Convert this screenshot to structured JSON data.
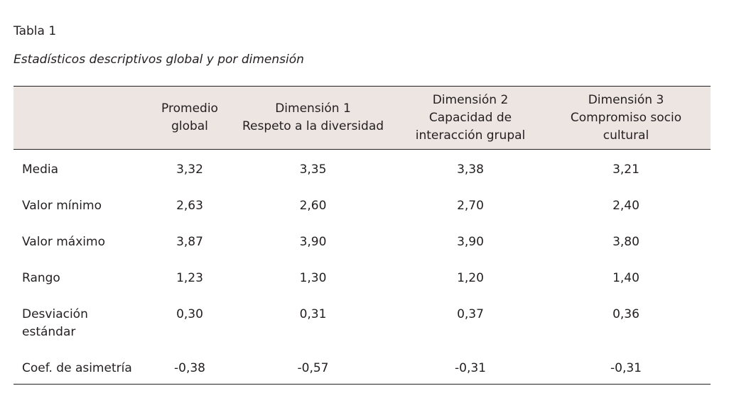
{
  "table_label": "Tabla 1",
  "caption": "Estadísticos descriptivos global  y por dimensión",
  "headers": [
    {
      "lines": []
    },
    {
      "lines": [
        "Promedio",
        "global"
      ]
    },
    {
      "lines": [
        "Dimensión 1",
        "Respeto a la diversidad"
      ]
    },
    {
      "lines": [
        "Dimensión 2",
        "Capacidad de",
        "interacción grupal"
      ]
    },
    {
      "lines": [
        "Dimensión 3",
        "Compromiso socio",
        "cultural"
      ]
    }
  ],
  "rows": [
    {
      "label": [
        "Media"
      ],
      "values": [
        "3,32",
        "3,35",
        "3,38",
        "3,21"
      ]
    },
    {
      "label": [
        "Valor mínimo"
      ],
      "values": [
        "2,63",
        "2,60",
        "2,70",
        "2,40"
      ]
    },
    {
      "label": [
        "Valor máximo"
      ],
      "values": [
        "3,87",
        "3,90",
        "3,90",
        "3,80"
      ]
    },
    {
      "label": [
        "Rango"
      ],
      "values": [
        "1,23",
        "1,30",
        "1,20",
        "1,40"
      ]
    },
    {
      "label": [
        "Desviación",
        "estándar"
      ],
      "values": [
        "0,30",
        "0,31",
        "0,37",
        "0,36"
      ]
    },
    {
      "label": [
        "Coef. de asimetría"
      ],
      "values": [
        "-0,38",
        "-0,57",
        "-0,31",
        "-0,31"
      ]
    }
  ],
  "colors": {
    "header_background": "#ede5e2",
    "text": "#231f20",
    "rule": "#231f20"
  }
}
